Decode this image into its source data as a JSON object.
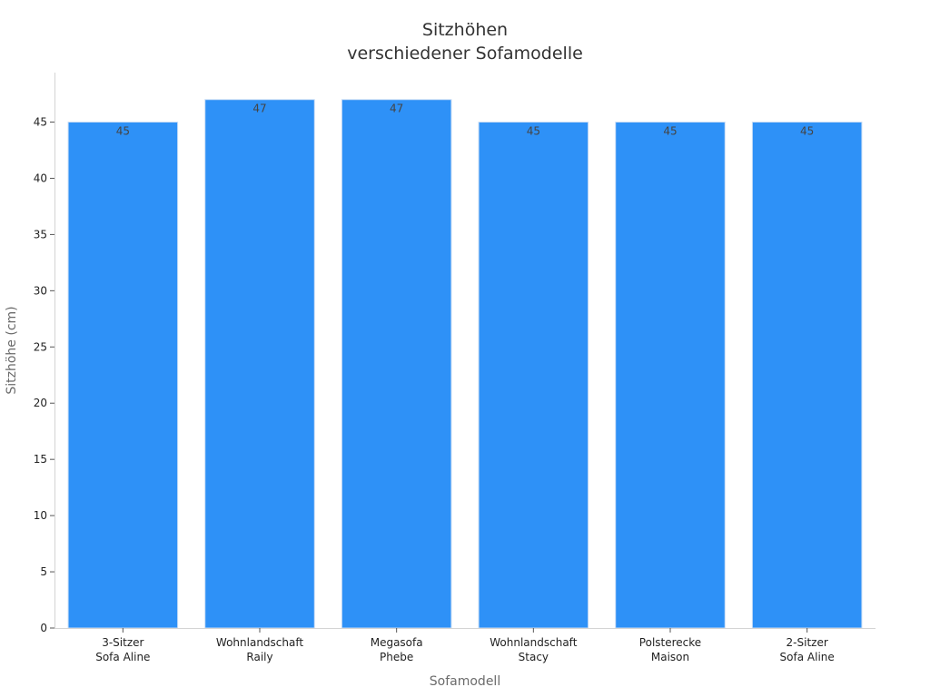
{
  "chart_data": {
    "type": "bar",
    "title_lines": [
      "Sitzhöhen",
      "verschiedener Sofamodelle"
    ],
    "xlabel": "Sofamodell",
    "ylabel": "Sitzhöhe (cm)",
    "categories": [
      [
        "3-Sitzer",
        "Sofa Aline"
      ],
      [
        "Wohnlandschaft",
        "Raily"
      ],
      [
        "Megasofa",
        "Phebe"
      ],
      [
        "Wohnlandschaft",
        "Stacy"
      ],
      [
        "Polsterecke",
        "Maison"
      ],
      [
        "2-Sitzer",
        "Sofa Aline"
      ]
    ],
    "values": [
      45,
      47,
      47,
      45,
      45,
      45
    ],
    "data_labels": [
      "45",
      "47",
      "47",
      "45",
      "45",
      "45"
    ],
    "ylim": [
      0,
      49.4
    ],
    "yticks": [
      0,
      5,
      10,
      15,
      20,
      25,
      30,
      35,
      40,
      45
    ],
    "grid": false,
    "bar_color": "#2e91f7"
  }
}
